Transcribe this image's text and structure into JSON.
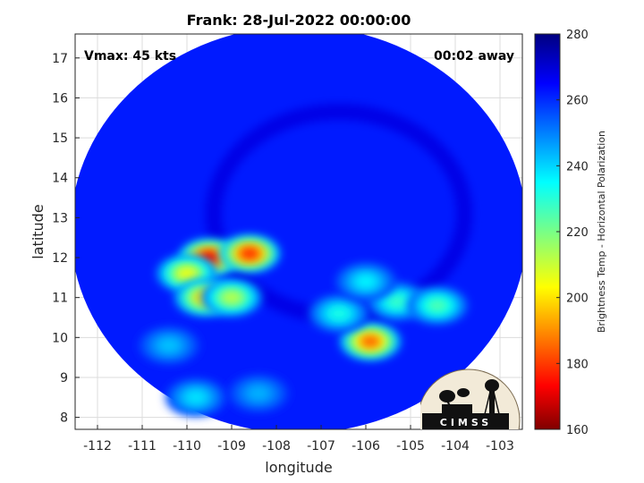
{
  "chart_data": {
    "type": "heatmap",
    "title": "Frank: 28-Jul-2022 00:00:00",
    "xlabel": "longitude",
    "ylabel": "latitude",
    "xlim": [
      -112.5,
      -102.5
    ],
    "ylim": [
      7.7,
      17.6
    ],
    "xticks": [
      "-112",
      "-111",
      "-110",
      "-109",
      "-108",
      "-107",
      "-106",
      "-105",
      "-104",
      "-103"
    ],
    "yticks": [
      "8",
      "9",
      "10",
      "11",
      "12",
      "13",
      "14",
      "15",
      "16",
      "17"
    ],
    "grid": true,
    "annotations": {
      "left": "Vmax: 45 kts",
      "right": "00:02 away"
    },
    "colorbar": {
      "label": "Brightness Temp - Horizontal Polarization",
      "min": 160,
      "max": 280,
      "ticks": [
        "160",
        "180",
        "200",
        "220",
        "240",
        "260",
        "280"
      ],
      "colormap": "jet"
    },
    "field": {
      "background_value": 262,
      "swath_center": [
        -107.5,
        12.7
      ],
      "swath_radius_deg": 5.1,
      "features": [
        {
          "lon": -109.5,
          "lat": 12.0,
          "value": 172
        },
        {
          "lon": -108.6,
          "lat": 12.1,
          "value": 178
        },
        {
          "lon": -110.0,
          "lat": 11.6,
          "value": 205
        },
        {
          "lon": -109.6,
          "lat": 11.0,
          "value": 198
        },
        {
          "lon": -109.0,
          "lat": 11.0,
          "value": 212
        },
        {
          "lon": -105.9,
          "lat": 9.9,
          "value": 185
        },
        {
          "lon": -105.3,
          "lat": 10.9,
          "value": 228
        },
        {
          "lon": -104.4,
          "lat": 10.8,
          "value": 225
        },
        {
          "lon": -106.6,
          "lat": 10.6,
          "value": 232
        },
        {
          "lon": -109.8,
          "lat": 8.5,
          "value": 238
        },
        {
          "lon": -110.4,
          "lat": 9.8,
          "value": 242
        },
        {
          "lon": -108.4,
          "lat": 8.6,
          "value": 244
        },
        {
          "lon": -106.0,
          "lat": 11.4,
          "value": 236
        }
      ]
    }
  },
  "logo": {
    "text": "CIMSS"
  }
}
